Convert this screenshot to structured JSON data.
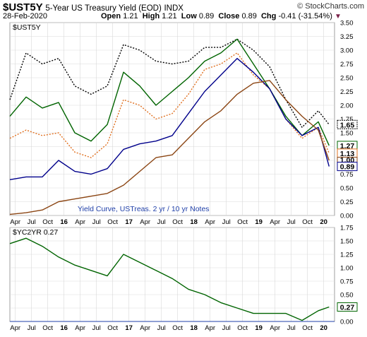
{
  "header": {
    "symbol": "$UST5Y",
    "name": "5-Year US Treasury Yield (EOD)",
    "index_label": "INDX",
    "brand": "© StockCharts.com",
    "date": "28-Feb-2020",
    "open_label": "Open",
    "open": "1.21",
    "high_label": "High",
    "high": "1.21",
    "low_label": "Low",
    "low": "0.89",
    "close_label": "Close",
    "close": "0.89",
    "chg_label": "Chg",
    "chg": "-0.41 (-31.54%)",
    "arrow": "▼"
  },
  "chart_data": [
    {
      "type": "line",
      "panel_label": "$UST5Y",
      "annotation": "Yield Curve, USTreas. 2 yr / 10 yr Notes",
      "x_axis_labels": [
        "Apr",
        "Jul",
        "Oct",
        "16",
        "Apr",
        "Jul",
        "Oct",
        "17",
        "Apr",
        "Jul",
        "Oct",
        "18",
        "Apr",
        "Jul",
        "Oct",
        "19",
        "Apr",
        "Jul",
        "Oct",
        "20"
      ],
      "y_ticks": [
        "0.00",
        "0.25",
        "0.50",
        "0.75",
        "1.00",
        "1.25",
        "1.50",
        "1.75",
        "2.00",
        "2.25",
        "2.50",
        "2.75",
        "3.00",
        "3.25",
        "3.50"
      ],
      "ylim": [
        0,
        3.5
      ],
      "x": [
        "2015-03",
        "2015-06",
        "2015-09",
        "2015-12",
        "2016-03",
        "2016-06",
        "2016-09",
        "2016-12",
        "2017-03",
        "2017-06",
        "2017-09",
        "2017-12",
        "2018-03",
        "2018-06",
        "2018-09",
        "2018-12",
        "2019-03",
        "2019-06",
        "2019-09",
        "2019-12",
        "2020-02"
      ],
      "series": [
        {
          "color": "#000000",
          "style": "dotted",
          "values": [
            2.1,
            2.95,
            2.75,
            2.85,
            2.35,
            2.2,
            2.35,
            3.1,
            3.0,
            2.8,
            2.75,
            2.8,
            3.05,
            3.05,
            3.2,
            3.0,
            2.7,
            2.1,
            1.6,
            1.9,
            1.65
          ]
        },
        {
          "color": "#006400",
          "style": "solid",
          "values": [
            1.8,
            2.15,
            1.95,
            2.05,
            1.5,
            1.35,
            1.65,
            2.6,
            2.35,
            2.0,
            2.25,
            2.5,
            2.8,
            2.95,
            3.2,
            2.75,
            2.3,
            1.8,
            1.45,
            1.7,
            1.27
          ]
        },
        {
          "color": "#e07020",
          "style": "dotted",
          "values": [
            1.4,
            1.55,
            1.45,
            1.5,
            1.15,
            1.05,
            1.3,
            2.1,
            2.0,
            1.75,
            1.85,
            2.2,
            2.65,
            2.75,
            2.95,
            2.55,
            2.3,
            1.75,
            1.4,
            1.6,
            1.13
          ]
        },
        {
          "color": "#00008b",
          "style": "solid",
          "values": [
            0.65,
            0.7,
            0.7,
            1.0,
            0.8,
            0.75,
            0.85,
            1.2,
            1.3,
            1.35,
            1.45,
            1.85,
            2.25,
            2.55,
            2.85,
            2.6,
            2.3,
            1.75,
            1.45,
            1.6,
            0.89
          ]
        },
        {
          "color": "#8b4513",
          "style": "solid",
          "values": [
            0.02,
            0.05,
            0.1,
            0.25,
            0.3,
            0.35,
            0.4,
            0.55,
            0.8,
            1.05,
            1.1,
            1.4,
            1.7,
            1.9,
            2.2,
            2.4,
            2.45,
            2.1,
            1.8,
            1.55,
            1.0
          ]
        }
      ],
      "badges": [
        {
          "value": "1.65",
          "color": "#000000",
          "dashed": true
        },
        {
          "value": "1.27",
          "color": "#006400"
        },
        {
          "value": "1.13",
          "color": "#e07020"
        },
        {
          "value": "1.00",
          "color": "#8b4513",
          "small": true
        },
        {
          "value": "0.89",
          "color": "#00008b"
        }
      ]
    },
    {
      "type": "line",
      "panel_label": "$YC2YR 0.27",
      "x_axis_labels": [
        "Apr",
        "Jul",
        "Oct",
        "16",
        "Apr",
        "Jul",
        "Oct",
        "17",
        "Apr",
        "Jul",
        "Oct",
        "18",
        "Apr",
        "Jul",
        "Oct",
        "19",
        "Apr",
        "Jul",
        "Oct",
        "20"
      ],
      "y_ticks": [
        "0.00",
        "0.25",
        "0.50",
        "0.75",
        "1.00",
        "1.25",
        "1.50",
        "1.75"
      ],
      "ylim": [
        0,
        1.75
      ],
      "x": [
        "2015-03",
        "2015-06",
        "2015-09",
        "2015-12",
        "2016-03",
        "2016-06",
        "2016-09",
        "2016-12",
        "2017-03",
        "2017-06",
        "2017-09",
        "2017-12",
        "2018-03",
        "2018-06",
        "2018-09",
        "2018-12",
        "2019-03",
        "2019-06",
        "2019-09",
        "2019-12",
        "2020-02"
      ],
      "series": [
        {
          "color": "#006400",
          "style": "solid",
          "values": [
            1.45,
            1.55,
            1.4,
            1.2,
            1.05,
            0.95,
            0.85,
            1.25,
            1.1,
            0.95,
            0.8,
            0.6,
            0.5,
            0.35,
            0.25,
            0.15,
            0.15,
            0.15,
            0.02,
            0.2,
            0.27
          ]
        }
      ],
      "badges": [
        {
          "value": "0.27",
          "color": "#006400"
        }
      ]
    }
  ]
}
